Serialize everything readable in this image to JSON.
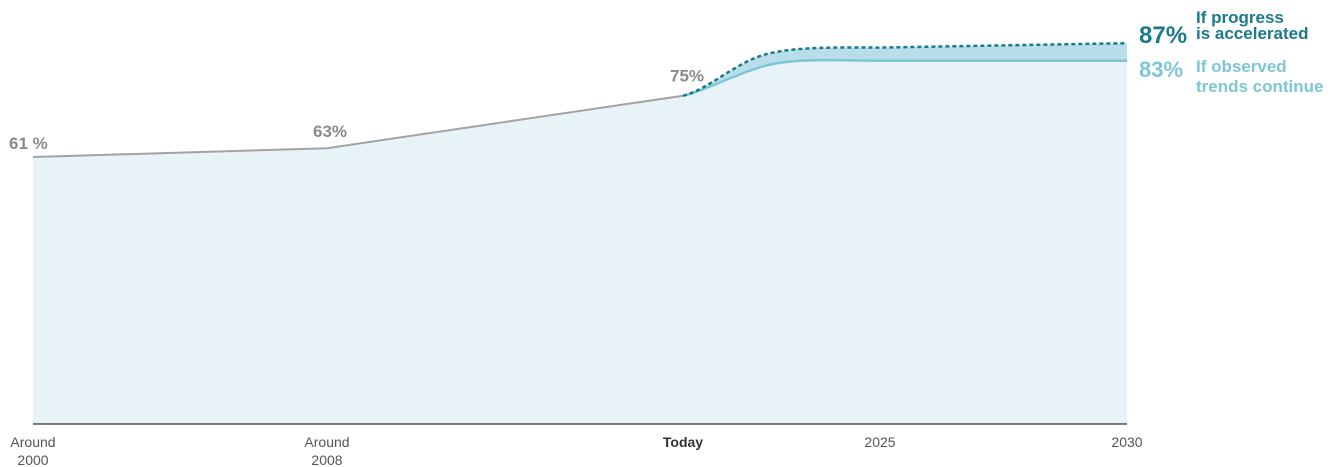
{
  "colors": {
    "area_fill": "#e8f3f8",
    "history_line": "#a3a3a3",
    "accelerated": "#1b7a8c",
    "observed": "#7cc6d8",
    "band_fill": "#a9d6e3",
    "axis": "#333333",
    "history_label": "#8a8a8a"
  },
  "chart_data": {
    "type": "area",
    "title": "",
    "xlabel": "",
    "ylabel": "",
    "ylim": [
      0,
      90
    ],
    "grid": false,
    "x_ticks": [
      {
        "key": "around2000",
        "line1": "Around",
        "line2": "2000",
        "bold": false
      },
      {
        "key": "around2008",
        "line1": "Around",
        "line2": "2008",
        "bold": false
      },
      {
        "key": "today",
        "line1": "Today",
        "line2": "",
        "bold": true
      },
      {
        "key": "y2025",
        "line1": "2025",
        "line2": "",
        "bold": false
      },
      {
        "key": "y2030",
        "line1": "2030",
        "line2": "",
        "bold": false
      }
    ],
    "historical": {
      "points": [
        {
          "x": "around2000",
          "value": 61,
          "label": "61 %"
        },
        {
          "x": "around2008",
          "value": 63,
          "label": "63%"
        },
        {
          "x": "today",
          "value": 75,
          "label": "75%"
        }
      ]
    },
    "series": [
      {
        "key": "observed",
        "label_value": "83%",
        "label_line1": "If observed",
        "label_line2": "trends continue",
        "points": [
          [
            "today",
            75
          ],
          [
            "y2025",
            83
          ],
          [
            "y2030",
            83
          ]
        ]
      },
      {
        "key": "accelerated",
        "label_value": "87%",
        "label_line1": "If progress",
        "label_line2": "is accelerated",
        "points": [
          [
            "today",
            75
          ],
          [
            "y2025",
            86
          ],
          [
            "y2030",
            87
          ]
        ]
      }
    ]
  }
}
